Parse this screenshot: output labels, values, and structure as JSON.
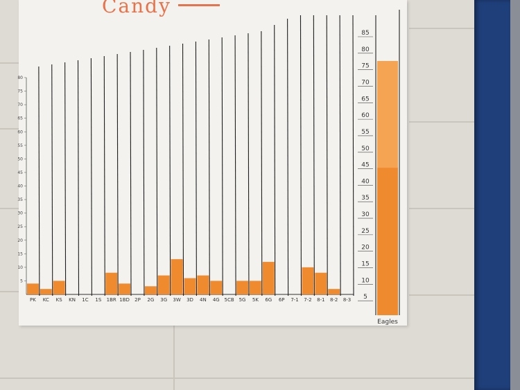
{
  "scene": {
    "title_fragment": "Candy",
    "colors": {
      "fill": "#f08a2e",
      "fill_light": "#f6a85a",
      "ink": "#222222",
      "door": "#1f3f7a"
    }
  },
  "chart_data": [
    {
      "type": "bar",
      "categories": [
        "PK",
        "KC",
        "KS",
        "KN",
        "1C",
        "1S",
        "1BR",
        "1BD",
        "2P",
        "2G",
        "3G",
        "3W",
        "3D",
        "4N",
        "4G",
        "5CB",
        "5G",
        "5K",
        "6G",
        "6P",
        "7-1",
        "7-2",
        "8-1",
        "8-2",
        "8-3"
      ],
      "values": [
        4,
        2,
        5,
        0,
        0,
        0,
        8,
        4,
        0,
        3,
        7,
        13,
        6,
        7,
        5,
        0,
        5,
        5,
        12,
        0,
        0,
        10,
        8,
        2,
        0
      ],
      "yticks": [
        "5",
        "10",
        "15",
        "20",
        "25",
        "30",
        "35",
        "40",
        "45",
        "50",
        "55",
        "60",
        "65",
        "70",
        "75",
        "80"
      ],
      "ylim": [
        0,
        80
      ]
    },
    {
      "type": "bar",
      "categories": [
        "Eagles"
      ],
      "values": [
        77
      ],
      "yticks": [
        "5",
        "10",
        "15",
        "20",
        "25",
        "30",
        "35",
        "40",
        "45",
        "50",
        "55",
        "60",
        "65",
        "70",
        "75",
        "80",
        "85"
      ],
      "ylim": [
        0,
        85
      ]
    }
  ]
}
